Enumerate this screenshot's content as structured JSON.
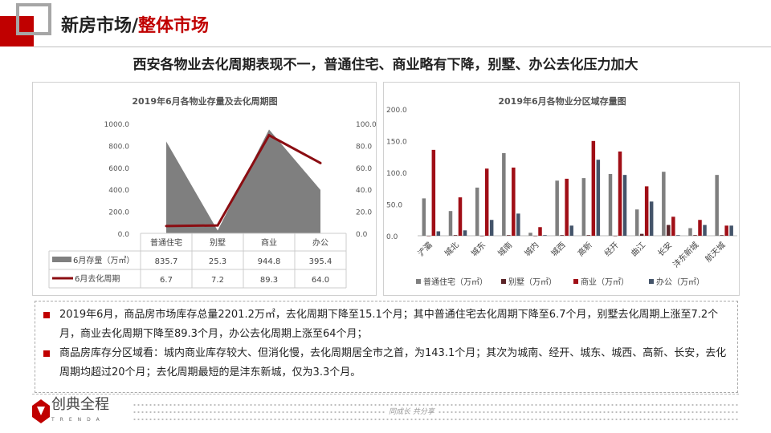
{
  "header": {
    "title_prefix": "新房市场/",
    "title_highlight": "整体市场",
    "subtitle": "西安各物业去化周期表现不一，普通住宅、商业略有下降，别墅、办公去化压力加大"
  },
  "colors": {
    "accent": "#c00000",
    "gray": "#7f7f7f",
    "villa": "#5b2428",
    "commercial": "#a00e16",
    "office": "#44546a"
  },
  "chart_data": [
    {
      "type": "area+line",
      "title": "2019年6月各物业存量及去化周期图",
      "categories": [
        "普通住宅",
        "别墅",
        "商业",
        "办公"
      ],
      "series": [
        {
          "name": "6月存量（万㎡）",
          "type": "area",
          "axis": "left",
          "values": [
            835.7,
            25.3,
            944.8,
            395.4
          ],
          "labels": [
            "835.7",
            "25.3",
            "944.8",
            "395.4"
          ]
        },
        {
          "name": "6月去化周期",
          "type": "line",
          "axis": "right",
          "values": [
            6.7,
            7.2,
            89.3,
            64.0
          ],
          "labels": [
            "6.7",
            "7.2",
            "89.3",
            "64.0"
          ]
        }
      ],
      "ylim": [
        0,
        1000
      ],
      "y2lim": [
        0,
        100
      ],
      "yticks": [
        "0.0",
        "200.0",
        "400.0",
        "600.0",
        "800.0",
        "1000.0"
      ],
      "y2ticks": [
        "0.0",
        "20.0",
        "40.0",
        "60.0",
        "80.0",
        "100.0"
      ],
      "data_table": true
    },
    {
      "type": "bar",
      "title": "2019年6月各物业分区域存量图",
      "categories": [
        "浐灞",
        "城北",
        "城东",
        "城南",
        "城内",
        "城西",
        "高新",
        "经开",
        "曲江",
        "长安",
        "沣东新城",
        "航天城"
      ],
      "series": [
        {
          "name": "普通住宅（万㎡）",
          "values": [
            59,
            39,
            76,
            130.5,
            4.7,
            87,
            91,
            97.5,
            41.5,
            101,
            12,
            96
          ]
        },
        {
          "name": "别墅（万㎡）",
          "values": [
            0,
            1,
            0,
            1,
            0,
            1,
            1,
            0,
            3,
            17,
            1,
            1
          ]
        },
        {
          "name": "商业（万㎡）",
          "values": [
            135.6,
            60.6,
            106,
            107.6,
            13.6,
            90,
            149.6,
            133,
            78,
            30,
            25,
            16
          ]
        },
        {
          "name": "办公（万㎡）",
          "values": [
            7,
            8.5,
            25,
            35,
            1,
            16,
            120,
            96,
            54,
            1,
            17,
            16
          ]
        }
      ],
      "ylim": [
        0,
        200
      ],
      "yticks": [
        "0.0",
        "50.0",
        "100.0",
        "150.0",
        "200.0"
      ],
      "legend": "bottom"
    }
  ],
  "bullets": [
    "2019年6月，商品房市场库存总量2201.2万㎡，去化周期下降至15.1个月；其中普通住宅去化周期下降至6.7个月，别墅去化周期上涨至7.2个月，商业去化周期下降至89.3个月，办公去化周期上涨至64个月；",
    "商品房库存分区域看：城内商业库存较大、但消化慢，去化周期居全市之首，为143.1个月；其次为城南、经开、城东、城西、高新、长安，去化周期均超过20个月；去化周期最短的是沣东新城，仅为3.3个月。"
  ],
  "footer": {
    "logo_name": "创典全程",
    "logo_sub": "TRENDA",
    "slogan": "同成长 共分享"
  }
}
